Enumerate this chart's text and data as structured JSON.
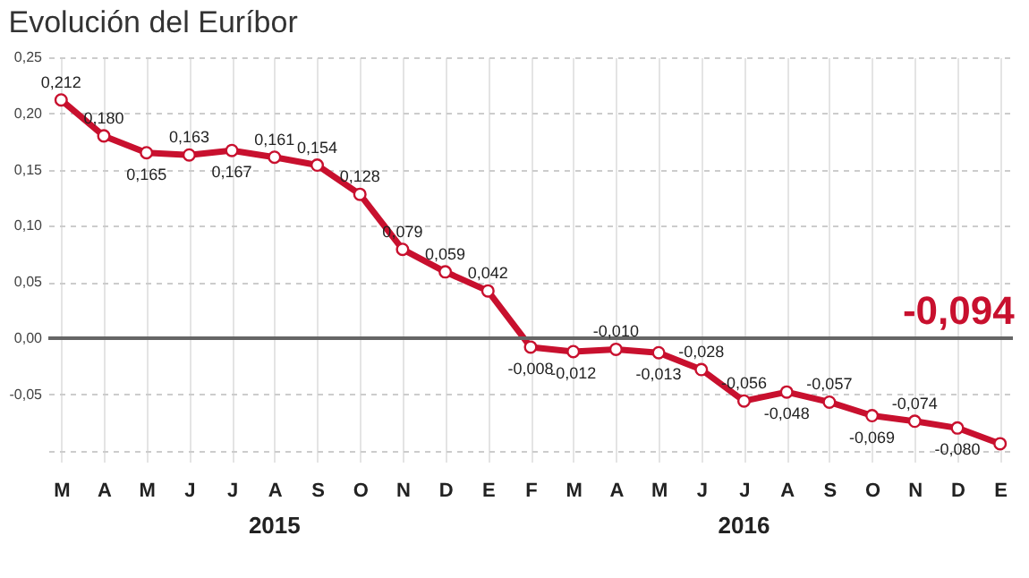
{
  "chart_data": {
    "type": "line",
    "title": "Evolución del Euríbor",
    "categories": [
      "M",
      "A",
      "M",
      "J",
      "J",
      "A",
      "S",
      "O",
      "N",
      "D",
      "E",
      "F",
      "M",
      "A",
      "M",
      "J",
      "J",
      "A",
      "S",
      "O",
      "N",
      "D",
      "E"
    ],
    "series": [
      {
        "color": "#c8102e",
        "values": [
          0.212,
          0.18,
          0.165,
          0.163,
          0.167,
          0.161,
          0.154,
          0.128,
          0.079,
          0.059,
          0.042,
          -0.008,
          -0.012,
          -0.01,
          -0.013,
          -0.028,
          -0.056,
          -0.048,
          -0.057,
          -0.069,
          -0.074,
          -0.08,
          -0.094
        ],
        "value_labels": [
          "0,212",
          "0,180",
          "0,165",
          "0,163",
          "0,167",
          "0,161",
          "0,154",
          "0,128",
          "0,079",
          "0,059",
          "0,042",
          "-0,008",
          "-0,012",
          "-0,010",
          "-0,013",
          "-0,028",
          "-0,056",
          "-0,048",
          "-0,057",
          "-0,069",
          "-0,074",
          "-0,080",
          "-0,094"
        ]
      }
    ],
    "ylim": [
      -0.11,
      0.25
    ],
    "yticks": [
      {
        "value": -0.1,
        "label": null
      },
      {
        "value": -0.05,
        "label": "-0,05"
      },
      {
        "value": 0,
        "label": "0,00"
      },
      {
        "value": 0.05,
        "label": "0,05"
      },
      {
        "value": 0.1,
        "label": "0,10"
      },
      {
        "value": 0.15,
        "label": "0,15"
      },
      {
        "value": 0.2,
        "label": "0,20"
      },
      {
        "value": 0.25,
        "label": "0,25"
      }
    ],
    "ref_lines": [
      {
        "axis": "y",
        "value": 0,
        "color": "#666666"
      }
    ],
    "grid": true,
    "marker": "circle",
    "line_style": "solid",
    "annotations": [
      "2015",
      "2016"
    ]
  }
}
